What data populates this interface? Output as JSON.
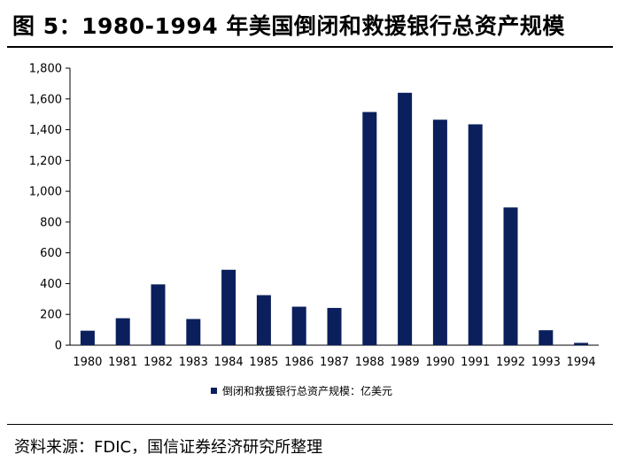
{
  "title": "图 5：1980-1994 年美国倒闭和救援银行总资产规模",
  "source": "资料来源：FDIC，国信证券经济研究所整理",
  "colors": {
    "bar": "#0a1f5c",
    "axis": "#000000"
  },
  "chart_data": {
    "type": "bar",
    "categories": [
      "1980",
      "1981",
      "1982",
      "1983",
      "1984",
      "1985",
      "1986",
      "1987",
      "1988",
      "1989",
      "1990",
      "1991",
      "1992",
      "1993",
      "1994"
    ],
    "series": [
      {
        "name": "倒闭和救援银行总资产规模：亿美元",
        "values": [
          94,
          175,
          395,
          170,
          490,
          325,
          250,
          242,
          1515,
          1640,
          1465,
          1435,
          895,
          97,
          15
        ]
      }
    ],
    "ylim": [
      0,
      1800
    ],
    "yticks": [
      "0",
      "200",
      "400",
      "600",
      "800",
      "1,000",
      "1,200",
      "1,400",
      "1,600",
      "1,800"
    ],
    "grid": false,
    "legend": "bottom-center"
  }
}
